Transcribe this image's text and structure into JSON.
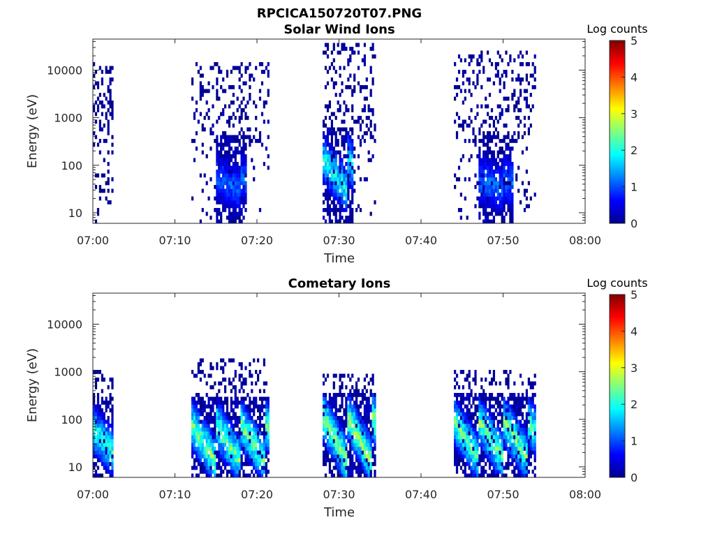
{
  "figure": {
    "title": "RPCICA150720T07.PNG"
  },
  "chart_data": [
    {
      "type": "heatmap",
      "title": "Solar Wind Ions",
      "xlabel": "Time",
      "ylabel": "Energy (eV)",
      "x_ticks": [
        "07:00",
        "07:10",
        "07:20",
        "07:30",
        "07:40",
        "07:50",
        "08:00"
      ],
      "y_ticks": [
        "10",
        "100",
        "1000",
        "10000"
      ],
      "xlim_minutes": [
        0,
        60
      ],
      "ylim_ev": [
        6,
        45000
      ],
      "y_scale": "log",
      "colorbar": {
        "label": "Log counts",
        "ticks": [
          "0",
          "1",
          "2",
          "3",
          "4",
          "5"
        ],
        "range": [
          0,
          5
        ],
        "colormap": "jet"
      },
      "bursts": [
        {
          "start_min": 0.0,
          "end_min": 2.3,
          "emin": 300,
          "emax": 15000,
          "peak_energy": 0,
          "peak_level": 0.7,
          "density": 0.35,
          "core_start": 0,
          "core_end": 0,
          "slope": 0
        },
        {
          "start_min": 12.0,
          "end_min": 21.5,
          "emin": 300,
          "emax": 14000,
          "peak_energy": 40,
          "peak_level": 1.4,
          "density": 0.2,
          "core_start": 15.0,
          "core_end": 18.5,
          "slope": -0.15
        },
        {
          "start_min": 28.0,
          "end_min": 34.5,
          "emin": 300,
          "emax": 35000,
          "peak_energy": 60,
          "peak_level": 2.4,
          "density": 0.22,
          "core_start": 28.0,
          "core_end": 31.5,
          "slope": -0.35
        },
        {
          "start_min": 44.0,
          "end_min": 54.0,
          "emin": 300,
          "emax": 25000,
          "peak_energy": 40,
          "peak_level": 1.5,
          "density": 0.22,
          "core_start": 47.0,
          "core_end": 51.0,
          "slope": -0.1
        }
      ]
    },
    {
      "type": "heatmap",
      "title": "Cometary Ions",
      "xlabel": "Time",
      "ylabel": "Energy (eV)",
      "x_ticks": [
        "07:00",
        "07:10",
        "07:20",
        "07:30",
        "07:40",
        "07:50",
        "08:00"
      ],
      "y_ticks": [
        "10",
        "100",
        "1000",
        "10000"
      ],
      "xlim_minutes": [
        0,
        60
      ],
      "ylim_ev": [
        6,
        45000
      ],
      "y_scale": "log",
      "colorbar": {
        "label": "Log counts",
        "ticks": [
          "0",
          "1",
          "2",
          "3",
          "4",
          "5"
        ],
        "range": [
          0,
          5
        ],
        "colormap": "jet"
      },
      "bursts": [
        {
          "start_min": 0.0,
          "end_min": 2.3,
          "emin": 10,
          "emax": 1000,
          "peak_energy": 30,
          "peak_level": 2.6,
          "density": 0.3,
          "core_start": 0,
          "core_end": 2.3,
          "slope": -0.3
        },
        {
          "start_min": 12.0,
          "end_min": 21.5,
          "emin": 10,
          "emax": 1800,
          "peak_energy": 30,
          "peak_level": 3.0,
          "density": 0.25,
          "core_start": 12.0,
          "core_end": 21.5,
          "slope": -0.4
        },
        {
          "start_min": 28.0,
          "end_min": 34.5,
          "emin": 10,
          "emax": 900,
          "peak_energy": 35,
          "peak_level": 3.2,
          "density": 0.3,
          "core_start": 28.0,
          "core_end": 34.5,
          "slope": -0.5
        },
        {
          "start_min": 44.0,
          "end_min": 54.0,
          "emin": 10,
          "emax": 1100,
          "peak_energy": 35,
          "peak_level": 3.0,
          "density": 0.25,
          "core_start": 44.0,
          "core_end": 54.0,
          "slope": -0.4
        }
      ]
    }
  ]
}
